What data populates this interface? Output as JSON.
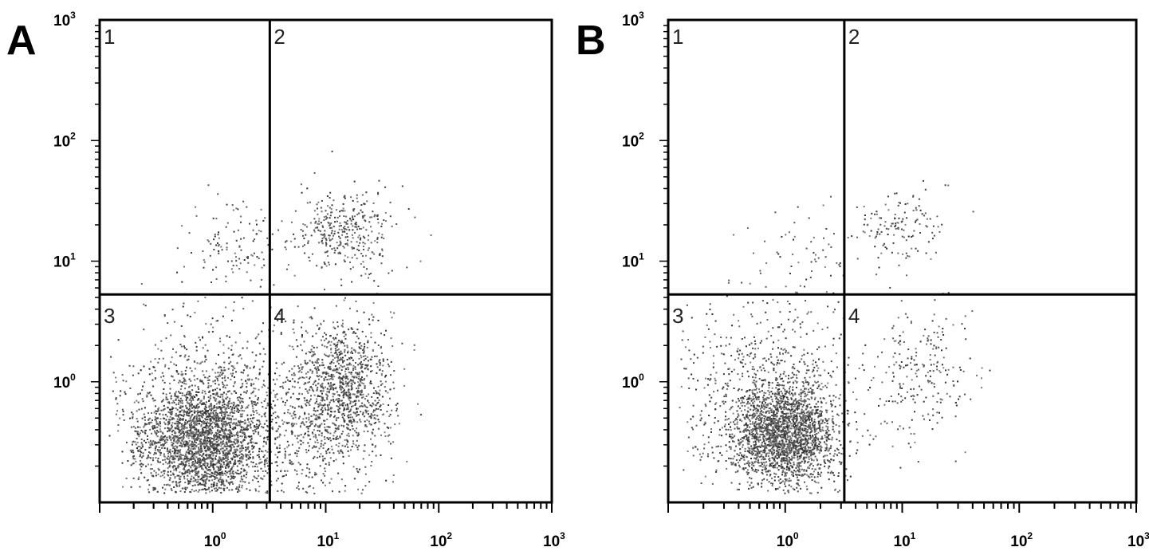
{
  "chart_data": [
    {
      "type": "scatter",
      "panel_label": "A",
      "scale": "log",
      "xlim": [
        0.1,
        1000
      ],
      "ylim": [
        0.1,
        1000
      ],
      "x_ticks": [
        {
          "base": "10",
          "exp": "0"
        },
        {
          "base": "10",
          "exp": "1"
        },
        {
          "base": "10",
          "exp": "2"
        },
        {
          "base": "10",
          "exp": "3"
        }
      ],
      "y_ticks": [
        {
          "base": "10",
          "exp": "0"
        },
        {
          "base": "10",
          "exp": "1"
        },
        {
          "base": "10",
          "exp": "2"
        },
        {
          "base": "10",
          "exp": "3"
        }
      ],
      "gates": {
        "x": 3.2,
        "y": 5.3
      },
      "quadrant_labels": [
        "1",
        "2",
        "3",
        "4"
      ],
      "point_color": "#333333",
      "clusters": [
        {
          "cx": 0.85,
          "cy": 0.32,
          "sx": 0.55,
          "sy": 0.5,
          "n": 2400
        },
        {
          "cx": 1.0,
          "cy": 0.55,
          "sx": 0.9,
          "sy": 0.9,
          "n": 900
        },
        {
          "cx": 14,
          "cy": 0.95,
          "sx": 0.45,
          "sy": 0.55,
          "n": 1000
        },
        {
          "cx": 10,
          "cy": 0.35,
          "sx": 0.55,
          "sy": 0.55,
          "n": 320
        },
        {
          "cx": 14,
          "cy": 18,
          "sx": 0.45,
          "sy": 0.35,
          "n": 360
        },
        {
          "cx": 1.6,
          "cy": 14,
          "sx": 0.4,
          "sy": 0.4,
          "n": 110
        }
      ]
    },
    {
      "type": "scatter",
      "panel_label": "B",
      "scale": "log",
      "xlim": [
        0.1,
        1000
      ],
      "ylim": [
        0.1,
        1000
      ],
      "x_ticks": [
        {
          "base": "10",
          "exp": "0"
        },
        {
          "base": "10",
          "exp": "1"
        },
        {
          "base": "10",
          "exp": "2"
        },
        {
          "base": "10",
          "exp": "3"
        }
      ],
      "y_ticks": [
        {
          "base": "10",
          "exp": "0"
        },
        {
          "base": "10",
          "exp": "1"
        },
        {
          "base": "10",
          "exp": "2"
        },
        {
          "base": "10",
          "exp": "3"
        }
      ],
      "gates": {
        "x": 3.2,
        "y": 5.3
      },
      "quadrant_labels": [
        "1",
        "2",
        "3",
        "4"
      ],
      "point_color": "#333333",
      "clusters": [
        {
          "cx": 0.95,
          "cy": 0.38,
          "sx": 0.45,
          "sy": 0.42,
          "n": 2200
        },
        {
          "cx": 0.6,
          "cy": 0.9,
          "sx": 0.9,
          "sy": 0.75,
          "n": 650
        },
        {
          "cx": 14,
          "cy": 1.3,
          "sx": 0.45,
          "sy": 0.55,
          "n": 220
        },
        {
          "cx": 9,
          "cy": 20,
          "sx": 0.4,
          "sy": 0.3,
          "n": 140
        },
        {
          "cx": 1.2,
          "cy": 12,
          "sx": 0.45,
          "sy": 0.4,
          "n": 55
        }
      ]
    }
  ]
}
